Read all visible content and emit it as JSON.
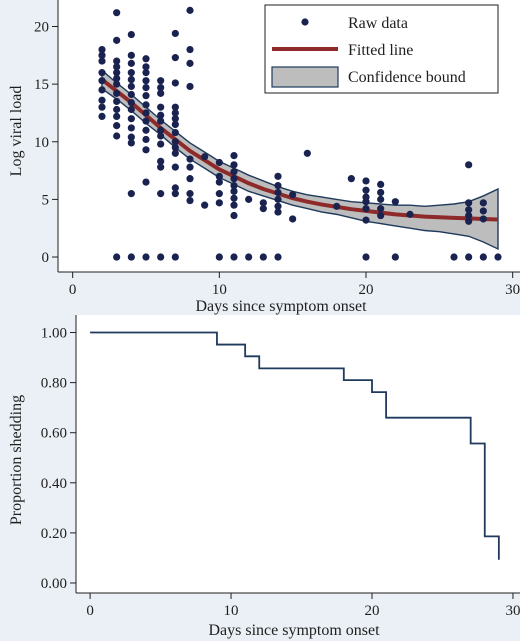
{
  "colors": {
    "page_bg": "#eaf0f5",
    "plot_bg": "#ffffff",
    "points": "#1a2350",
    "fitted_line": "#8e2a2a",
    "ci_fill": "#bdbdbd",
    "ci_edge": "#1f3a5c",
    "step": "#1f3a5c",
    "axis": "#1f1f1f"
  },
  "chart_data": [
    {
      "type": "scatter",
      "xlabel": "Days since symptom onset",
      "ylabel": "Log viral load",
      "xlim": [
        -1,
        30.5
      ],
      "ylim": [
        -1.3,
        22.3
      ],
      "xticks": [
        0,
        10,
        20,
        30
      ],
      "yticks": [
        0,
        5,
        10,
        15,
        20
      ],
      "grid": false,
      "legend": {
        "placement": "top-right",
        "entries": [
          {
            "kind": "marker",
            "label": "Raw data"
          },
          {
            "kind": "line",
            "label": "Fitted line"
          },
          {
            "kind": "band",
            "label": "Confidence bound"
          }
        ]
      },
      "series": [
        {
          "name": "Raw data",
          "kind": "points",
          "points": [
            [
              2,
              18
            ],
            [
              2,
              17.5
            ],
            [
              2,
              17
            ],
            [
              2,
              16
            ],
            [
              2,
              15.3
            ],
            [
              2,
              14.5
            ],
            [
              2,
              13.6
            ],
            [
              2,
              13
            ],
            [
              2,
              12.2
            ],
            [
              3,
              21.2
            ],
            [
              3,
              18.8
            ],
            [
              3,
              17
            ],
            [
              3,
              16.5
            ],
            [
              3,
              16
            ],
            [
              3,
              15.5
            ],
            [
              3,
              15
            ],
            [
              3,
              14.2
            ],
            [
              3,
              13.5
            ],
            [
              3,
              12.8
            ],
            [
              3,
              12.2
            ],
            [
              3,
              11.4
            ],
            [
              3,
              10.5
            ],
            [
              3,
              0
            ],
            [
              4,
              19.3
            ],
            [
              4,
              17.5
            ],
            [
              4,
              16.8
            ],
            [
              4,
              16
            ],
            [
              4,
              15.4
            ],
            [
              4,
              14.8
            ],
            [
              4,
              14.1
            ],
            [
              4,
              13.4
            ],
            [
              4,
              12.8
            ],
            [
              4,
              12
            ],
            [
              4,
              11.2
            ],
            [
              4,
              10.4
            ],
            [
              4,
              9.9
            ],
            [
              4,
              5.5
            ],
            [
              4,
              0
            ],
            [
              5,
              17.2
            ],
            [
              5,
              16.5
            ],
            [
              5,
              16
            ],
            [
              5,
              15.3
            ],
            [
              5,
              14.7
            ],
            [
              5,
              14
            ],
            [
              5,
              13.2
            ],
            [
              5,
              12.5
            ],
            [
              5,
              11.8
            ],
            [
              5,
              11
            ],
            [
              5,
              10.2
            ],
            [
              5,
              9.3
            ],
            [
              5,
              6.5
            ],
            [
              5,
              0
            ],
            [
              6,
              15.3
            ],
            [
              6,
              14.7
            ],
            [
              6,
              14.2
            ],
            [
              6,
              13
            ],
            [
              6,
              12.3
            ],
            [
              6,
              11.8
            ],
            [
              6,
              11
            ],
            [
              6,
              10.5
            ],
            [
              6,
              9.8
            ],
            [
              6,
              8.3
            ],
            [
              6,
              7.8
            ],
            [
              6,
              5.5
            ],
            [
              6,
              0
            ],
            [
              7,
              19.4
            ],
            [
              7,
              17.3
            ],
            [
              7,
              15.1
            ],
            [
              7,
              13
            ],
            [
              7,
              12.5
            ],
            [
              7,
              12
            ],
            [
              7,
              11.5
            ],
            [
              7,
              10.8
            ],
            [
              7,
              10
            ],
            [
              7,
              9.5
            ],
            [
              7,
              9
            ],
            [
              7,
              7.8
            ],
            [
              7,
              6
            ],
            [
              7,
              5.5
            ],
            [
              7,
              0
            ],
            [
              8,
              21.4
            ],
            [
              8,
              18
            ],
            [
              8,
              16.8
            ],
            [
              8,
              14.8
            ],
            [
              8,
              8.5
            ],
            [
              8,
              7.8
            ],
            [
              8,
              6.8
            ],
            [
              8,
              5.5
            ],
            [
              8,
              4.9
            ],
            [
              9,
              8.7
            ],
            [
              9,
              4.5
            ],
            [
              10,
              8.2
            ],
            [
              10,
              7
            ],
            [
              10,
              6.5
            ],
            [
              10,
              5.5
            ],
            [
              10,
              4.7
            ],
            [
              10,
              0
            ],
            [
              11,
              8.8
            ],
            [
              11,
              8
            ],
            [
              11,
              7.4
            ],
            [
              11,
              6.8
            ],
            [
              11,
              6.2
            ],
            [
              11,
              5.7
            ],
            [
              11,
              5.1
            ],
            [
              11,
              4.5
            ],
            [
              11,
              3.6
            ],
            [
              11,
              0
            ],
            [
              12,
              5
            ],
            [
              12,
              0
            ],
            [
              13,
              4.7
            ],
            [
              13,
              4.2
            ],
            [
              13,
              0
            ],
            [
              14,
              7
            ],
            [
              14,
              6.2
            ],
            [
              14,
              5.6
            ],
            [
              14,
              5
            ],
            [
              14,
              4.4
            ],
            [
              14,
              3.9
            ],
            [
              14,
              0
            ],
            [
              15,
              5.4
            ],
            [
              15,
              3.3
            ],
            [
              16,
              9
            ],
            [
              18,
              4.4
            ],
            [
              19,
              6.8
            ],
            [
              20,
              6.6
            ],
            [
              20,
              5.8
            ],
            [
              20,
              5.2
            ],
            [
              20,
              4.8
            ],
            [
              20,
              4.2
            ],
            [
              20,
              3.2
            ],
            [
              20,
              0
            ],
            [
              21,
              6.3
            ],
            [
              21,
              5.6
            ],
            [
              21,
              5
            ],
            [
              21,
              4.2
            ],
            [
              21,
              3.6
            ],
            [
              22,
              4.8
            ],
            [
              22,
              0
            ],
            [
              23,
              3.7
            ],
            [
              26,
              0
            ],
            [
              27,
              8
            ],
            [
              27,
              4.7
            ],
            [
              27,
              4.1
            ],
            [
              27,
              3.6
            ],
            [
              27,
              3.1
            ],
            [
              27,
              0
            ],
            [
              28,
              4.7
            ],
            [
              28,
              4
            ],
            [
              28,
              3.3
            ],
            [
              28,
              0
            ],
            [
              29,
              0
            ]
          ]
        },
        {
          "name": "Fitted line",
          "kind": "line",
          "x": [
            2,
            3,
            4,
            5,
            6,
            7,
            8,
            9,
            10,
            11,
            12,
            13,
            14,
            15,
            16,
            17,
            18,
            19,
            20,
            21,
            22,
            23,
            24,
            25,
            26,
            27,
            28,
            29
          ],
          "y": [
            15.4,
            14.4,
            13.4,
            12.3,
            11.2,
            10.2,
            9.2,
            8.4,
            7.6,
            7,
            6.4,
            5.9,
            5.5,
            5.1,
            4.8,
            4.55,
            4.35,
            4.15,
            4,
            3.85,
            3.7,
            3.6,
            3.5,
            3.45,
            3.4,
            3.35,
            3.3,
            3.25
          ]
        },
        {
          "name": "Confidence bound",
          "kind": "band",
          "x": [
            2,
            3,
            4,
            5,
            6,
            7,
            8,
            9,
            10,
            11,
            12,
            13,
            14,
            15,
            16,
            17,
            18,
            19,
            20,
            21,
            22,
            23,
            24,
            25,
            26,
            27,
            28,
            29
          ],
          "lower": [
            14.6,
            13.7,
            12.7,
            11.6,
            10.6,
            9.5,
            8.5,
            7.7,
            6.9,
            6.3,
            5.7,
            5.3,
            4.9,
            4.5,
            4.2,
            3.9,
            3.7,
            3.4,
            3.1,
            2.9,
            2.7,
            2.5,
            2.3,
            2.2,
            2,
            1.8,
            1.3,
            0.7
          ],
          "upper": [
            16.2,
            15.1,
            14.1,
            13,
            11.9,
            10.9,
            9.9,
            9.1,
            8.3,
            7.7,
            7.1,
            6.6,
            6.1,
            5.7,
            5.4,
            5.2,
            5,
            4.8,
            4.7,
            4.6,
            4.5,
            4.5,
            4.4,
            4.5,
            4.6,
            4.8,
            5.3,
            5.9
          ]
        }
      ]
    },
    {
      "type": "line",
      "subtype": "step",
      "xlabel": "Days since symptom onset",
      "ylabel": "Proportion shedding",
      "xlim": [
        -1,
        30.5
      ],
      "ylim": [
        -0.04,
        1.07
      ],
      "xticks": [
        0,
        10,
        20,
        30
      ],
      "yticks": [
        "0.00",
        "0.20",
        "0.40",
        "0.60",
        "0.80",
        "1.00"
      ],
      "grid": false,
      "series": [
        {
          "kind": "step",
          "x": [
            0,
            9,
            11,
            12,
            18,
            20,
            21,
            27,
            28,
            29
          ],
          "y": [
            1.0,
            0.952,
            0.905,
            0.857,
            0.81,
            0.762,
            0.66,
            0.557,
            0.186,
            0.093
          ]
        }
      ]
    }
  ]
}
